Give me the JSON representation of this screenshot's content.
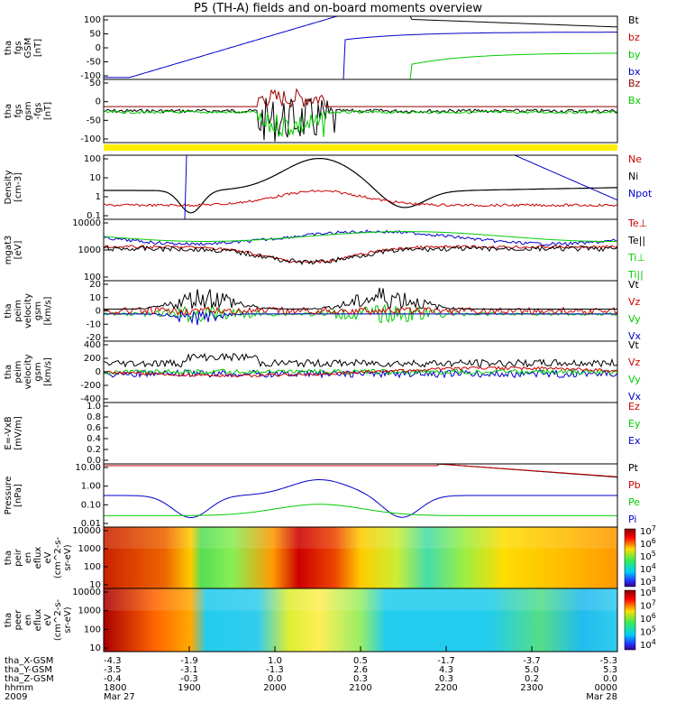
{
  "title": "P5 (TH-A) fields and on-board moments overview",
  "chart_data": {
    "type": "line",
    "title": "P5 (TH-A) fields and on-board moments overview",
    "panels": [
      {
        "id": "fgs",
        "ylabel": [
          "tha",
          "fgs",
          "GSM",
          "[nT]"
        ],
        "ticks": [
          "100",
          "50",
          "0",
          "-50",
          "-100"
        ],
        "legend": [
          {
            "label": "Bt",
            "color": "#000000"
          },
          {
            "label": "bz",
            "color": "#cc0000"
          },
          {
            "label": "by",
            "color": "#00cc00"
          },
          {
            "label": "bx",
            "color": "#0000cc"
          }
        ]
      },
      {
        "id": "fgs2",
        "ylabel": [
          "tha",
          "fgs",
          "gsm",
          "-fgs",
          "[nT]"
        ],
        "ticks": [
          "50",
          "0",
          "-50",
          "-100"
        ],
        "legend": [
          {
            "label": "Bz",
            "color": "#990000"
          },
          {
            "label": "Bx",
            "color": "#00cc00"
          }
        ]
      },
      {
        "id": "density",
        "ylabel": [
          "Density",
          "[cm-3]"
        ],
        "ticks": [
          "100",
          "10",
          "1",
          "0.1"
        ],
        "legend": [
          {
            "label": "Ne",
            "color": "#cc0000"
          },
          {
            "label": "Ni",
            "color": "#000000"
          },
          {
            "label": "Npot",
            "color": "#0000cc"
          }
        ]
      },
      {
        "id": "temp",
        "ylabel": [
          "mgat3",
          "[eV]"
        ],
        "ticks": [
          "10000",
          "1000",
          "100"
        ],
        "legend": [
          {
            "label": "Te⊥",
            "color": "#cc0000"
          },
          {
            "label": "Te||",
            "color": "#000000"
          },
          {
            "label": "Ti⊥",
            "color": "#00cc00"
          },
          {
            "label": "Ti||",
            "color": "#00cc00"
          }
        ]
      },
      {
        "id": "veli",
        "ylabel": [
          "tha",
          "peim",
          "velocity",
          "gsm",
          "[km/s]"
        ],
        "ticks": [
          "20",
          "10",
          "0",
          "-10",
          "-20"
        ],
        "legend": [
          {
            "label": "Vt",
            "color": "#000000"
          },
          {
            "label": "Vz",
            "color": "#cc0000"
          },
          {
            "label": "Vy",
            "color": "#00cc00"
          },
          {
            "label": "Vx",
            "color": "#0000cc"
          }
        ]
      },
      {
        "id": "vele",
        "ylabel": [
          "tha",
          "peim",
          "velocity",
          "gsm",
          "[km/s]"
        ],
        "ticks": [
          "400",
          "200",
          "0",
          "-200",
          "-400"
        ],
        "legend": [
          {
            "label": "Vt",
            "color": "#000000"
          },
          {
            "label": "Vz",
            "color": "#cc0000"
          },
          {
            "label": "Vy",
            "color": "#00cc00"
          },
          {
            "label": "Vx",
            "color": "#0000cc"
          }
        ]
      },
      {
        "id": "efield",
        "ylabel": [
          "E=-VxB",
          "[mV/m]"
        ],
        "ticks": [
          "1.0",
          "0.8",
          "0.6",
          "0.4",
          "0.2",
          "0.0"
        ],
        "legend": [
          {
            "label": "Ez",
            "color": "#cc0000"
          },
          {
            "label": "Ey",
            "color": "#00cc00"
          },
          {
            "label": "Ex",
            "color": "#0000cc"
          }
        ]
      },
      {
        "id": "pressure",
        "ylabel": [
          "Pressure",
          "[nPa]"
        ],
        "ticks": [
          "10.00",
          "1.00",
          "0.10",
          "0.01"
        ],
        "legend": [
          {
            "label": "Pt",
            "color": "#000000"
          },
          {
            "label": "Pb",
            "color": "#cc0000"
          },
          {
            "label": "Pe",
            "color": "#00cc00"
          },
          {
            "label": "Pi",
            "color": "#0000cc"
          }
        ]
      },
      {
        "id": "spec_i",
        "ylabel": [
          "tha",
          "peir",
          "en",
          "eflux",
          "eV",
          "(cm^2-s-",
          "sr-eV)"
        ],
        "ticks": [
          "10000",
          "1000",
          "100",
          "10"
        ],
        "colorbar": [
          "10^7",
          "10^6",
          "10^5",
          "10^4",
          "10^3"
        ]
      },
      {
        "id": "spec_e",
        "ylabel": [
          "tha",
          "peer",
          "en",
          "eflux",
          "eV",
          "(cm^2-s-",
          "sr-eV)"
        ],
        "ticks": [
          "10000",
          "1000",
          "100",
          "10"
        ],
        "colorbar": [
          "10^8",
          "10^7",
          "10^6",
          "10^5",
          "10^4"
        ]
      }
    ],
    "time_axis": {
      "rows": [
        {
          "label": "tha_X-GSM",
          "values": [
            "-4.3",
            "-1.9",
            "1.0",
            "0.5",
            "-1.7",
            "-3.7",
            "-5.3"
          ]
        },
        {
          "label": "tha_Y-GSM",
          "values": [
            "-3.5",
            "-3.1",
            "-1.3",
            "2.6",
            "4.3",
            "5.0",
            "5.3"
          ]
        },
        {
          "label": "tha_Z-GSM",
          "values": [
            "-0.4",
            "-0.3",
            "0.0",
            "0.3",
            "0.3",
            "0.2",
            "0.0"
          ]
        },
        {
          "label": "hhmm",
          "values": [
            "1800",
            "1900",
            "2000",
            "2100",
            "2200",
            "2300",
            "0000"
          ]
        },
        {
          "label": "2009",
          "values": [
            "Mar 27",
            "",
            "",
            "",
            "",
            "",
            "Mar 28"
          ]
        }
      ]
    }
  }
}
